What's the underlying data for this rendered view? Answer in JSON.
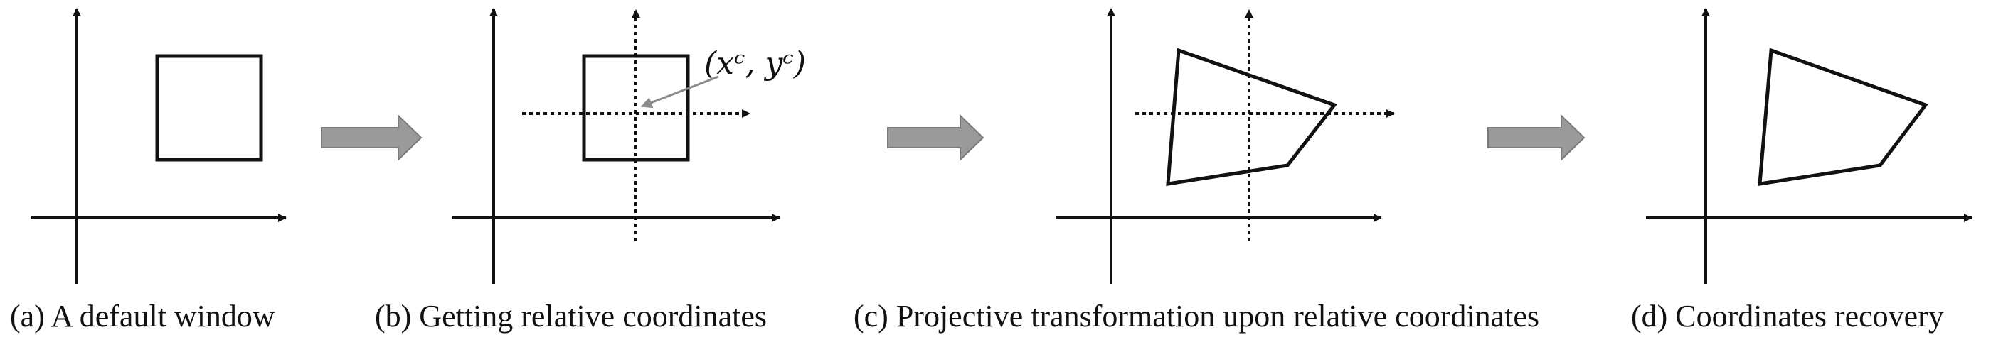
{
  "figure": {
    "panels": [
      {
        "id": "a",
        "caption": "(a) A default window"
      },
      {
        "id": "b",
        "caption": "(b) Getting relative coordinates",
        "center_label": "(xᶜ, yᶜ)"
      },
      {
        "id": "c",
        "caption": "(c) Projective transformation upon relative coordinates"
      },
      {
        "id": "d",
        "caption": "(d) Coordinates recovery"
      }
    ]
  },
  "colors": {
    "stroke": "#111111",
    "arrow_fill": "#9a9a9a",
    "arrow_stroke": "#7a7a7a",
    "pointer": "#8a8a8a"
  }
}
